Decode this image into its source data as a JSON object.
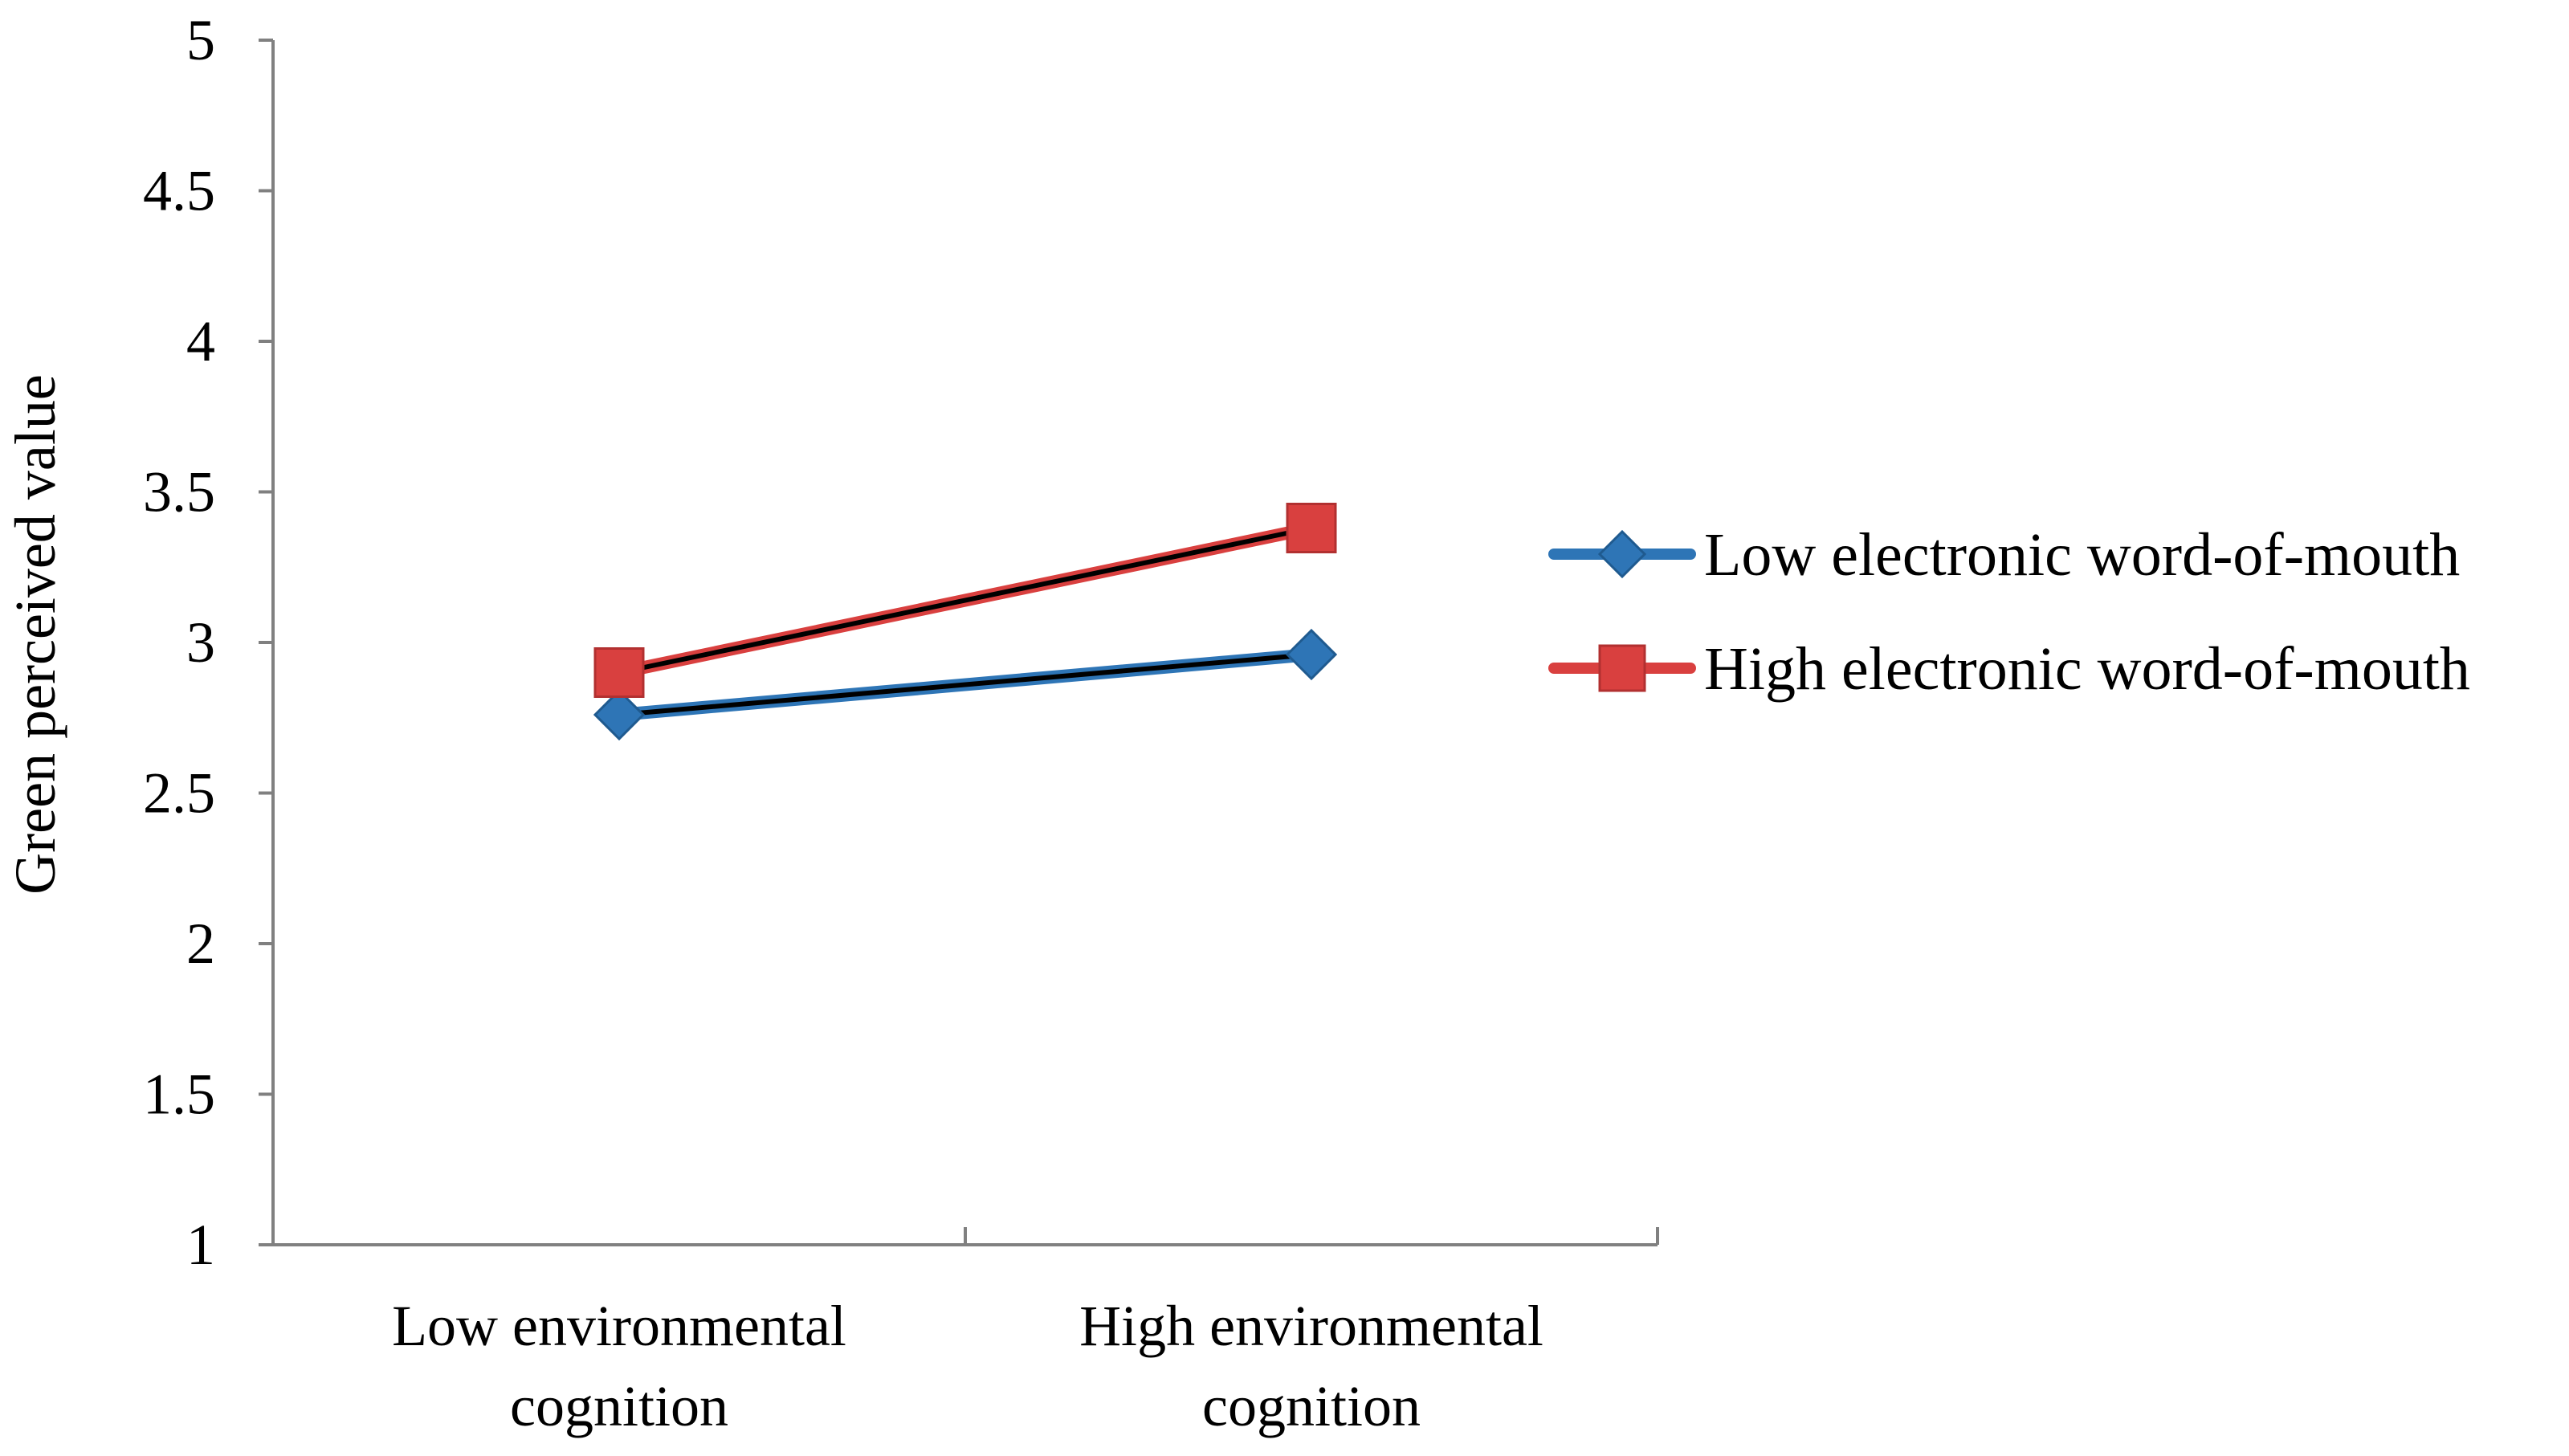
{
  "chart_data": {
    "type": "line",
    "title": "",
    "xlabel": "",
    "ylabel": "Green perceived value",
    "ylim": [
      1,
      5
    ],
    "yticks": [
      "1",
      "1.5",
      "2",
      "2.5",
      "3",
      "3.5",
      "4",
      "4.5",
      "5"
    ],
    "grid": false,
    "legend_position": "right",
    "categories": [
      [
        "Low environmental",
        "cognition"
      ],
      [
        "High environmental",
        "cognition"
      ]
    ],
    "series": [
      {
        "name": "Low electronic word-of-mouth",
        "values": [
          2.76,
          2.96
        ],
        "color": "#2e75b6",
        "marker": "diamond"
      },
      {
        "name": "High electronic word-of-mouth",
        "values": [
          2.9,
          3.38
        ],
        "color": "#d9403f",
        "marker": "square"
      }
    ]
  }
}
